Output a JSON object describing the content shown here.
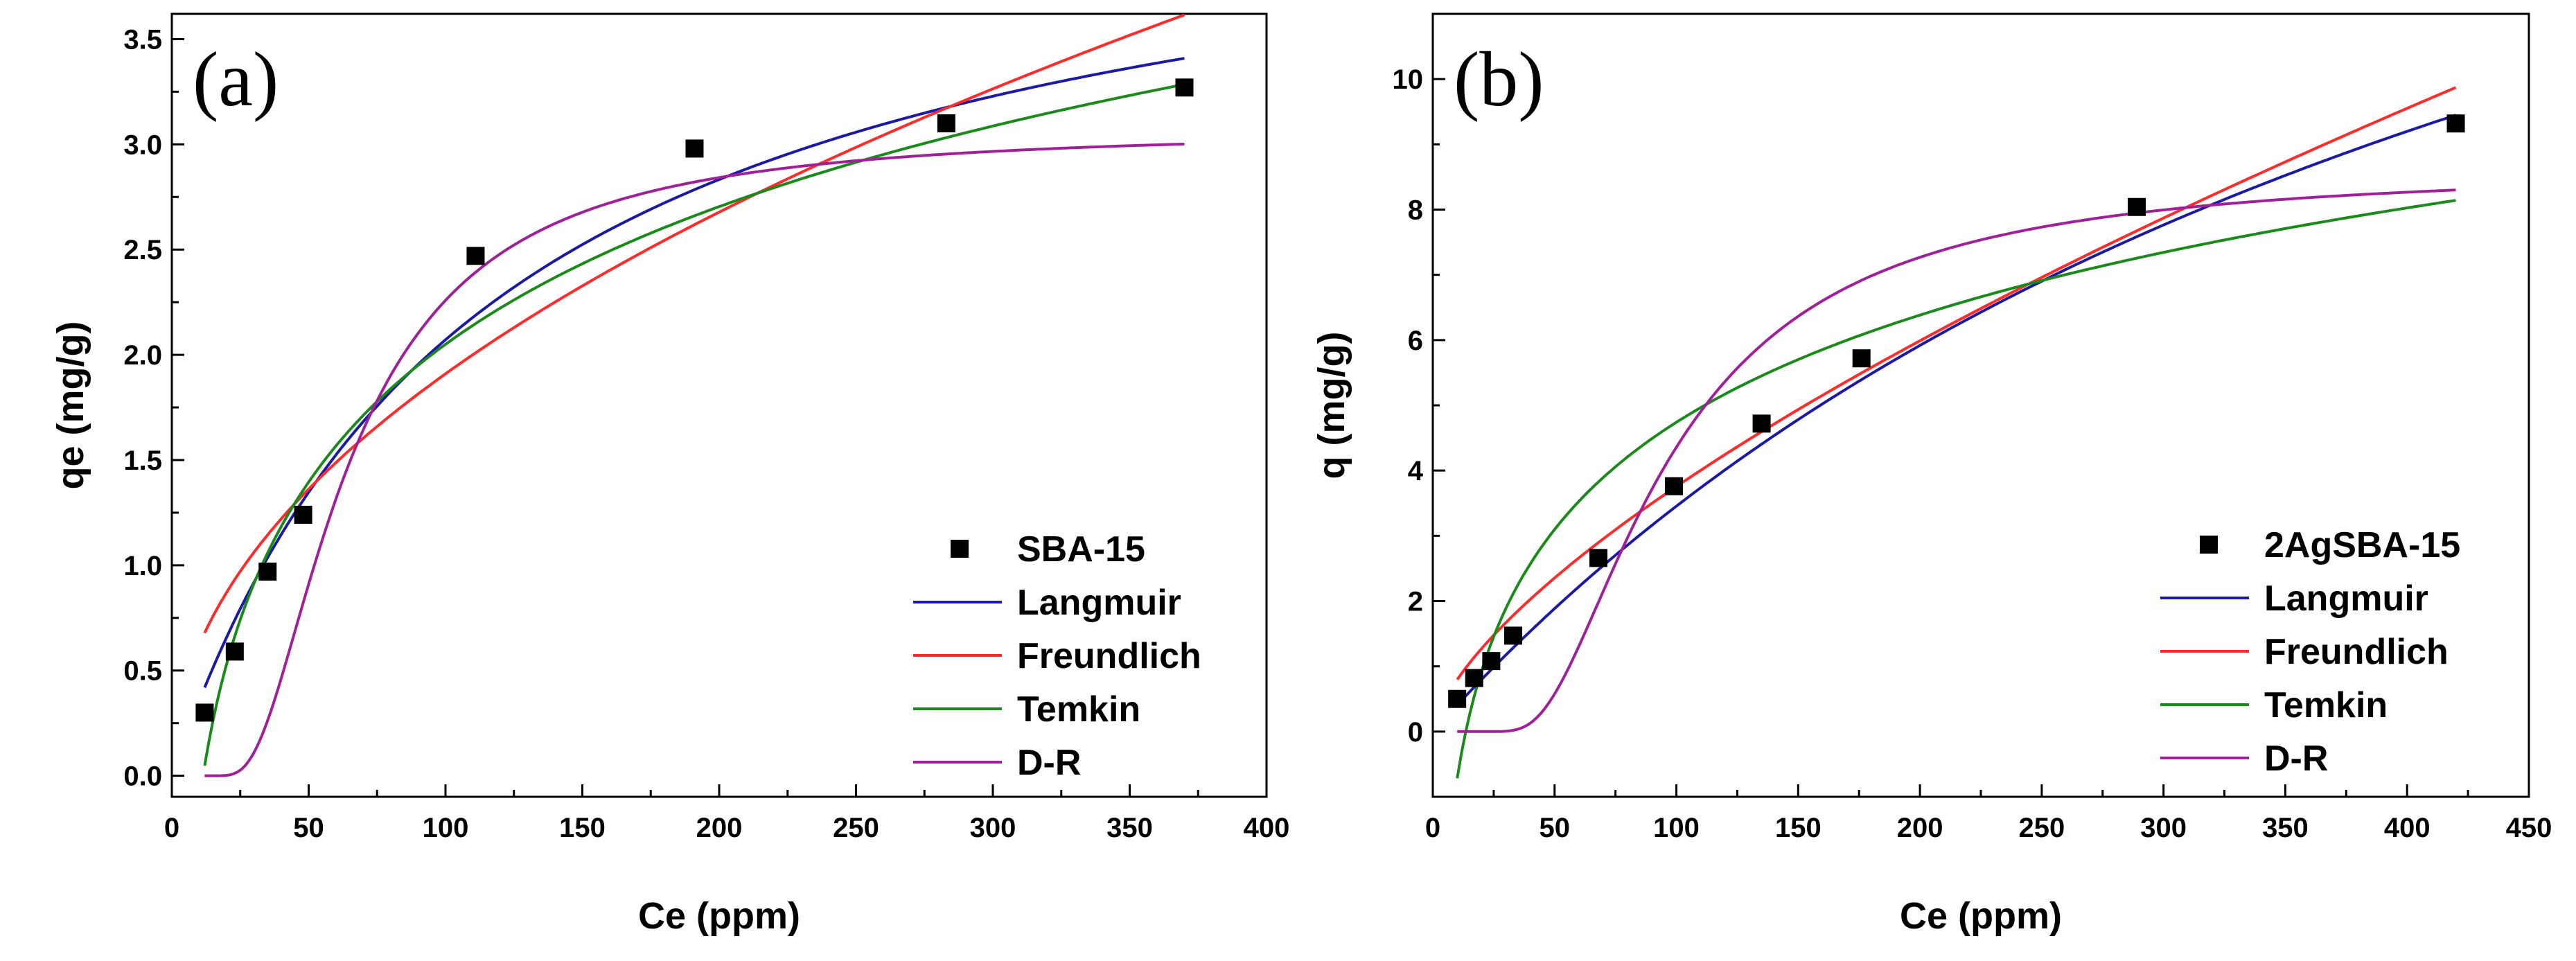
{
  "chart_data": [
    {
      "type": "scatter",
      "panel_label": "(a)",
      "xlabel": "Ce (ppm)",
      "ylabel": "qe (mg/g)",
      "xlim": [
        0,
        400
      ],
      "ylim": [
        -0.1,
        3.62
      ],
      "xticks": [
        0,
        50,
        100,
        150,
        200,
        250,
        300,
        350,
        400
      ],
      "yticks": [
        0.0,
        0.5,
        1.0,
        1.5,
        2.0,
        2.5,
        3.0,
        3.5
      ],
      "ytick_decimals": 1,
      "legend_position": "bottom-right",
      "points": {
        "name": "SBA-15",
        "x": [
          12,
          23,
          35,
          48,
          111,
          191,
          283,
          370
        ],
        "y": [
          0.3,
          0.59,
          0.97,
          1.24,
          2.47,
          2.98,
          3.1,
          3.27
        ]
      },
      "series": [
        {
          "name": "Langmuir",
          "color": "#1a1aa6",
          "model": "langmuir",
          "params": {
            "qm": 4.48,
            "K": 0.0086
          },
          "x_range": [
            12,
            370
          ]
        },
        {
          "name": "Freundlich",
          "color": "#ff2a2a",
          "model": "freundlich",
          "params": {
            "Kf": 0.202,
            "n": 2.05
          },
          "x_range": [
            12,
            370
          ]
        },
        {
          "name": "Temkin",
          "color": "#1a8a1a",
          "model": "temkin",
          "params": {
            "B": 0.944,
            "A": 0.0877
          },
          "x_range": [
            12,
            370
          ]
        },
        {
          "name": "D-R",
          "color": "#a0209a",
          "model": "dr",
          "params": {
            "qs": 3.07,
            "k": 3100
          },
          "x_range": [
            12,
            370
          ]
        }
      ]
    },
    {
      "type": "scatter",
      "panel_label": "(b)",
      "xlabel": "Ce (ppm)",
      "ylabel": "q (mg/g)",
      "xlim": [
        0,
        450
      ],
      "ylim": [
        -1,
        11
      ],
      "xticks": [
        0,
        50,
        100,
        150,
        200,
        250,
        300,
        350,
        400,
        450
      ],
      "yticks": [
        0,
        2,
        4,
        6,
        8,
        10
      ],
      "ytick_decimals": 0,
      "legend_position": "bottom-right",
      "points": {
        "name": "2AgSBA-15",
        "x": [
          10,
          17,
          24,
          33,
          68,
          99,
          135,
          176,
          289,
          420
        ],
        "y": [
          0.5,
          0.82,
          1.08,
          1.47,
          2.66,
          3.76,
          4.72,
          5.72,
          8.04,
          9.32
        ]
      },
      "series": [
        {
          "name": "Langmuir",
          "color": "#1a1aa6",
          "model": "langmuir",
          "params": {
            "qm": 20.64,
            "K": 0.00201
          },
          "x_range": [
            10,
            420
          ]
        },
        {
          "name": "Freundlich",
          "color": "#ff2a2a",
          "model": "freundlich",
          "params": {
            "Kf": 0.169,
            "n": 1.485
          },
          "x_range": [
            10,
            420
          ]
        },
        {
          "name": "Temkin",
          "color": "#1a8a1a",
          "model": "temkin",
          "params": {
            "B": 2.37,
            "A": 0.0739
          },
          "x_range": [
            10,
            420
          ]
        },
        {
          "name": "D-R",
          "color": "#a0209a",
          "model": "dr",
          "params": {
            "qs": 8.63,
            "k": 6900
          },
          "x_range": [
            10,
            420
          ]
        }
      ]
    }
  ]
}
